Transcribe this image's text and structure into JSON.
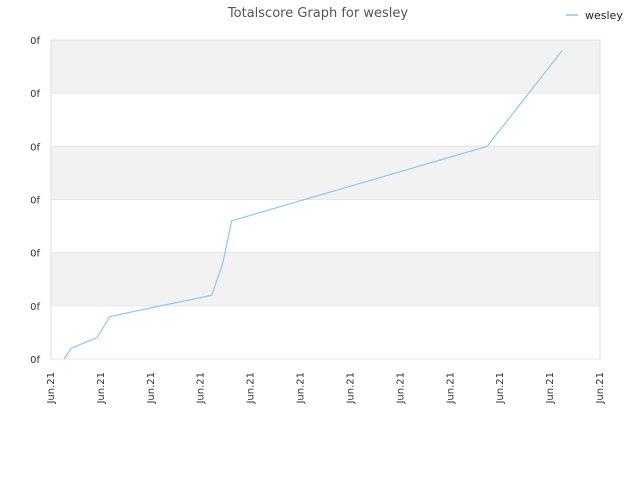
{
  "chart_data": {
    "type": "line",
    "title": "Totalscore Graph for wesley",
    "xlabel": "",
    "ylabel": "",
    "x_ticks": [
      "Jun.21",
      "Jun.21",
      "Jun.21",
      "Jun.21",
      "Jun.21",
      "Jun.21",
      "Jun.21",
      "Jun.21",
      "Jun.21",
      "Jun.21",
      "Jun.21",
      "Jun.21"
    ],
    "y_ticks": [
      "0f",
      "0f",
      "0f",
      "0f",
      "0f",
      "0f",
      "0f"
    ],
    "xlim": [
      0,
      11
    ],
    "ylim": [
      0,
      6
    ],
    "grid": "alternating horizontal bands",
    "legend_position": "top-right",
    "colors": {
      "series": "#8ec8f0",
      "band": "#f2f2f2",
      "frame": "#dddddd"
    },
    "series": [
      {
        "name": "wesley",
        "x": [
          0.26,
          0.4,
          0.92,
          1.18,
          3.22,
          3.44,
          3.62,
          8.74,
          10.24
        ],
        "y": [
          0.0,
          0.2,
          0.4,
          0.8,
          1.2,
          1.8,
          2.6,
          4.0,
          5.8
        ]
      }
    ]
  }
}
